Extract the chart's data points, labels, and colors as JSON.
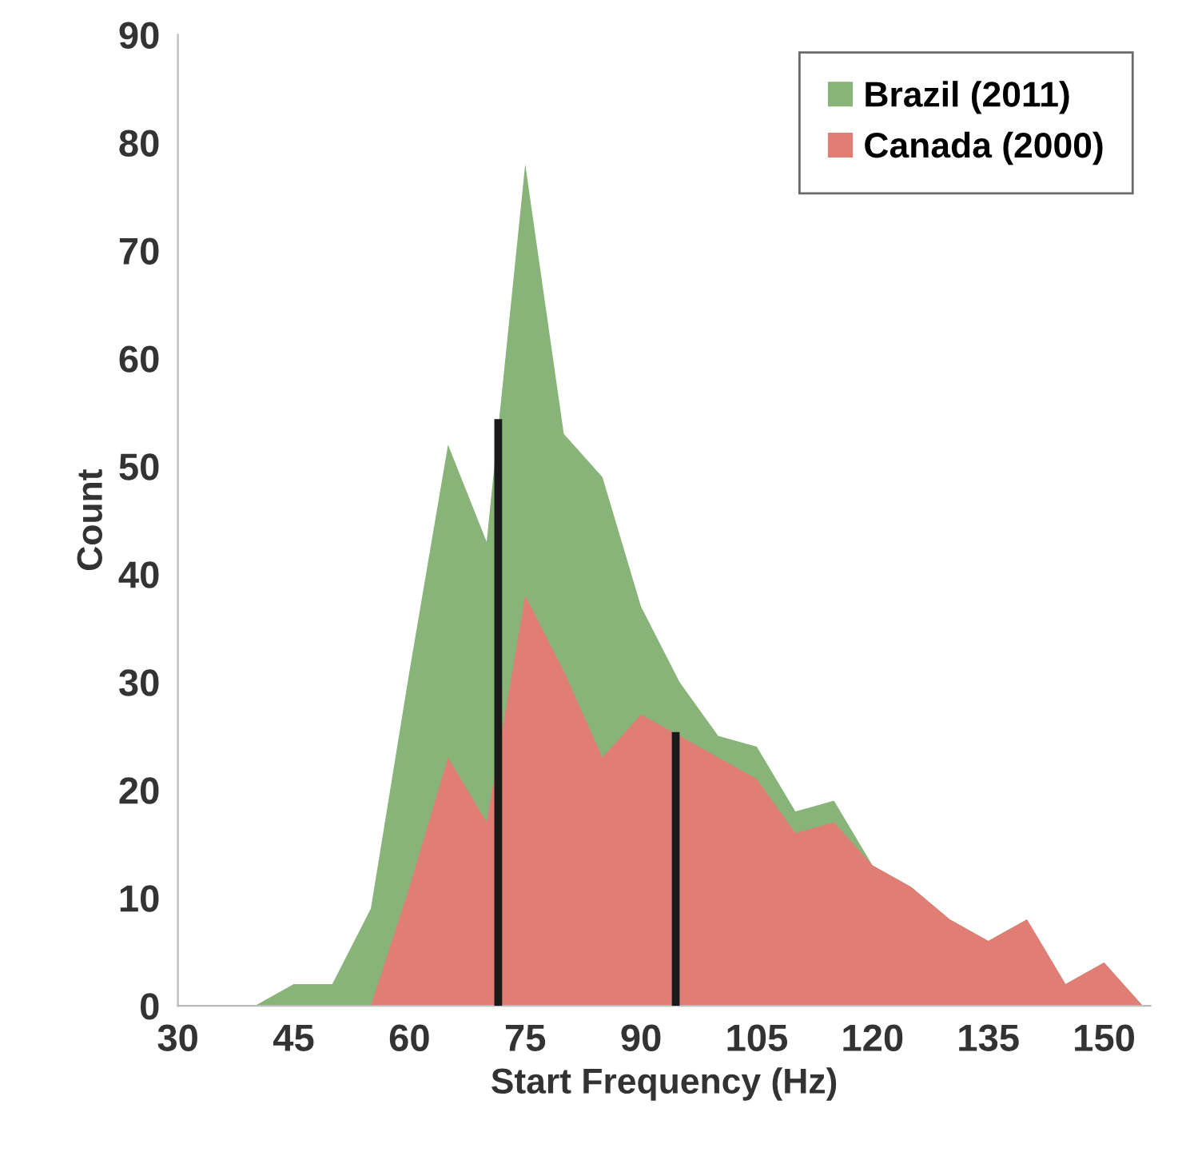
{
  "chart_data": {
    "type": "area",
    "xlabel": "Start Frequency (Hz)",
    "ylabel": "Count",
    "xlim": [
      30,
      156
    ],
    "ylim": [
      0,
      90
    ],
    "xticks": [
      30,
      45,
      60,
      75,
      90,
      105,
      120,
      135,
      150
    ],
    "yticks": [
      0,
      10,
      20,
      30,
      40,
      50,
      60,
      70,
      80,
      90
    ],
    "grid": false,
    "legend": "top right",
    "series": [
      {
        "name": "Brazil (2011)",
        "color": "#88b47a",
        "x": [
          40,
          45,
          50,
          55,
          60,
          65,
          70,
          75,
          80,
          85,
          90,
          95,
          100,
          105,
          110,
          115,
          120,
          125,
          130,
          135,
          140,
          145,
          150,
          155
        ],
        "values": [
          0,
          2,
          2,
          9,
          31,
          52,
          43,
          78,
          53,
          49,
          37,
          30,
          25,
          24,
          18,
          19,
          13,
          11,
          8,
          6,
          8,
          2,
          4,
          0
        ]
      },
      {
        "name": "Canada (2000)",
        "color": "#e07d74",
        "x": [
          55,
          60,
          65,
          70,
          75,
          80,
          85,
          90,
          95,
          100,
          105,
          110,
          115,
          120,
          125,
          130,
          135,
          140,
          145,
          150,
          155
        ],
        "values": [
          0,
          11,
          23,
          17,
          38,
          31,
          23,
          27,
          25,
          23,
          21,
          16,
          17,
          13,
          11,
          8,
          6,
          8,
          2,
          4,
          0
        ]
      },
      {
        "type": "line",
        "color": "#1a1a1a",
        "x": [
          71.5,
          71.5
        ],
        "values": [
          0,
          54
        ]
      },
      {
        "type": "line",
        "color": "#1a1a1a",
        "x": [
          94.5,
          94.5
        ],
        "values": [
          0,
          25
        ]
      }
    ]
  }
}
